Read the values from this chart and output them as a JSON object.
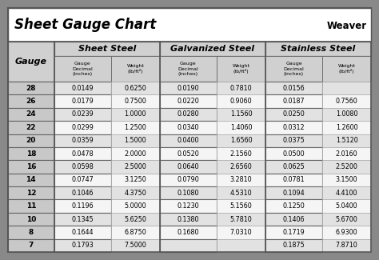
{
  "title": "Sheet Gauge Chart",
  "bg_outer": "#898989",
  "bg_white": "#ffffff",
  "bg_header": "#d0d0d0",
  "bg_gauge_col": "#c8c8c8",
  "bg_data": "#ffffff",
  "border_thick": "#555555",
  "border_thin": "#999999",
  "section_headers": [
    "Sheet Steel",
    "Galvanized Steel",
    "Stainless Steel"
  ],
  "gauges": [
    "28",
    "26",
    "24",
    "22",
    "20",
    "18",
    "16",
    "14",
    "12",
    "11",
    "10",
    "8",
    "7"
  ],
  "sheet_steel_decimal": [
    "0.0149",
    "0.0179",
    "0.0239",
    "0.0299",
    "0.0359",
    "0.0478",
    "0.0598",
    "0.0747",
    "0.1046",
    "0.1196",
    "0.1345",
    "0.1644",
    "0.1793"
  ],
  "sheet_steel_weight": [
    "0.6250",
    "0.7500",
    "1.0000",
    "1.2500",
    "1.5000",
    "2.0000",
    "2.5000",
    "3.1250",
    "4.3750",
    "5.0000",
    "5.6250",
    "6.8750",
    "7.5000"
  ],
  "galv_steel_decimal": [
    "0.0190",
    "0.0220",
    "0.0280",
    "0.0340",
    "0.0400",
    "0.0520",
    "0.0640",
    "0.0790",
    "0.1080",
    "0.1230",
    "0.1380",
    "0.1680",
    ""
  ],
  "galv_steel_weight": [
    "0.7810",
    "0.9060",
    "1.1560",
    "1.4060",
    "1.6560",
    "2.1560",
    "2.6560",
    "3.2810",
    "4.5310",
    "5.1560",
    "5.7810",
    "7.0310",
    ""
  ],
  "stainless_decimal": [
    "0.0156",
    "0.0187",
    "0.0250",
    "0.0312",
    "0.0375",
    "0.0500",
    "0.0625",
    "0.0781",
    "0.1094",
    "0.1250",
    "0.1406",
    "0.1719",
    "0.1875"
  ],
  "stainless_weight": [
    "",
    "0.7560",
    "1.0080",
    "1.2600",
    "1.5120",
    "2.0160",
    "2.5200",
    "3.1500",
    "4.4100",
    "5.0400",
    "5.6700",
    "6.9300",
    "7.8710"
  ]
}
